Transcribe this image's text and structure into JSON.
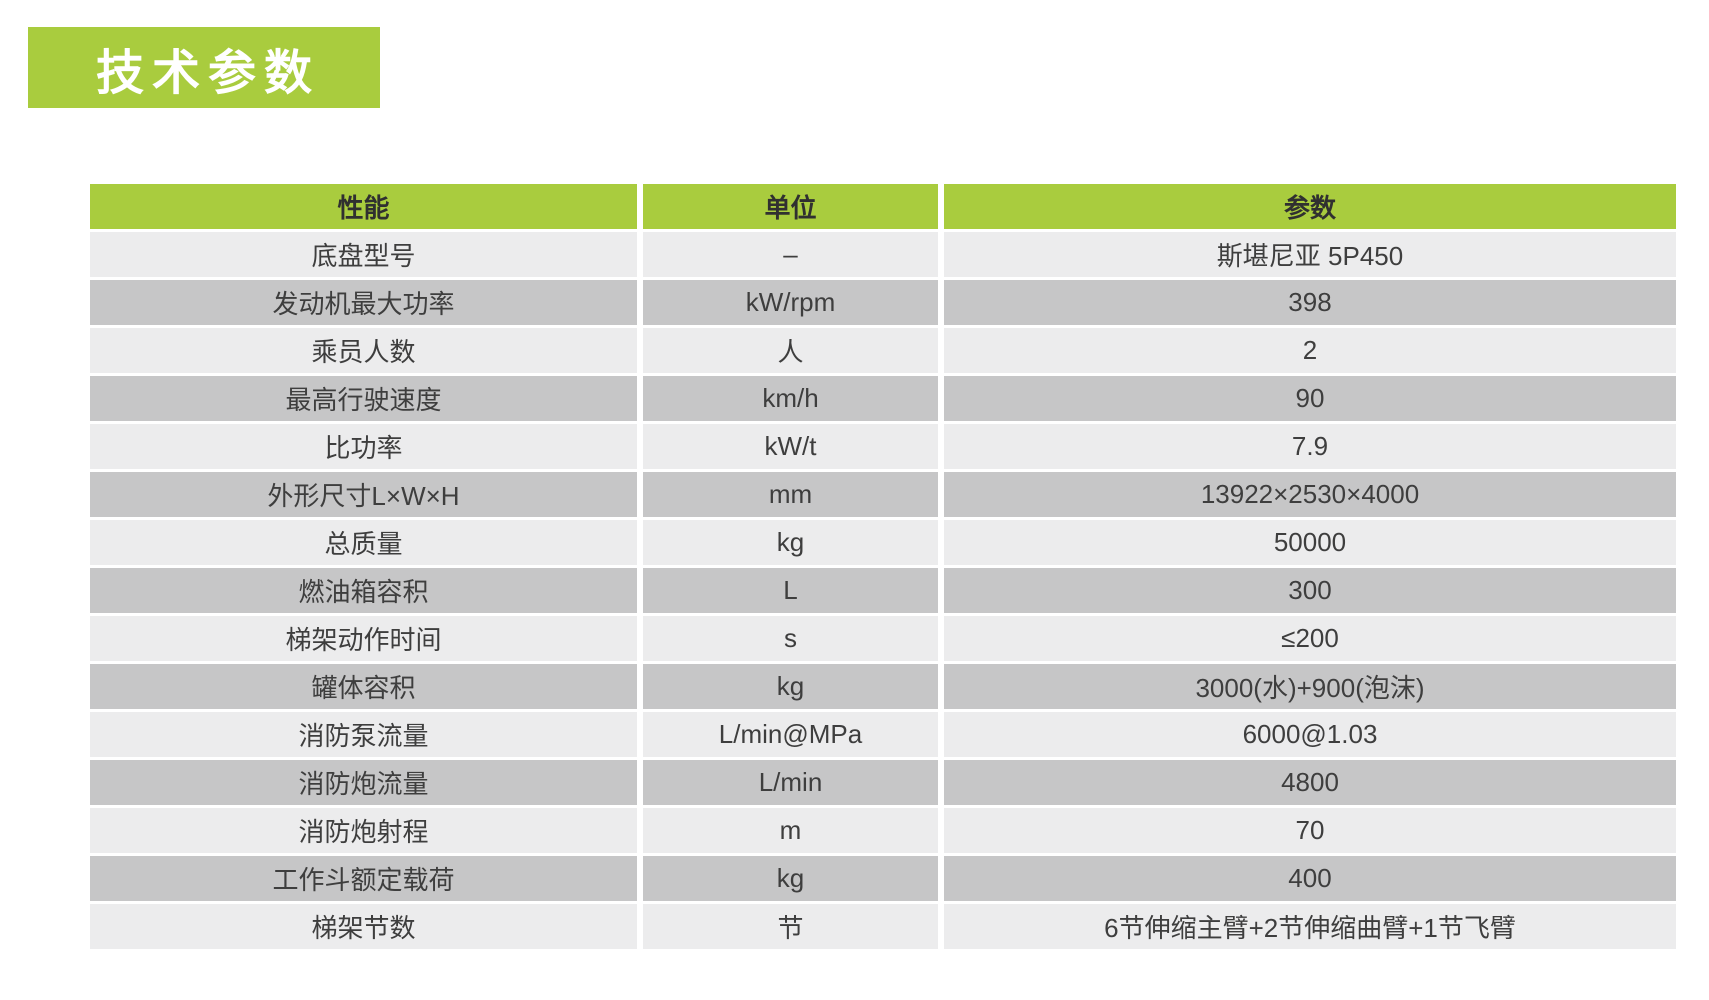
{
  "page": {
    "title": "技术参数"
  },
  "colors": {
    "green": "#A9CC3E",
    "row_light": "#ECECED",
    "row_dark": "#C6C6C7",
    "header_text": "#303030",
    "body_text": "#3E3E3E",
    "title_text": "#FFFFFF"
  },
  "table": {
    "columns": [
      "性能",
      "单位",
      "参数"
    ],
    "rows": [
      {
        "name": "底盘型号",
        "unit": "–",
        "value": "斯堪尼亚 5P450"
      },
      {
        "name": "发动机最大功率",
        "unit": "kW/rpm",
        "value": "398"
      },
      {
        "name": "乘员人数",
        "unit": "人",
        "value": "2"
      },
      {
        "name": "最高行驶速度",
        "unit": "km/h",
        "value": "90"
      },
      {
        "name": "比功率",
        "unit": "kW/t",
        "value": "7.9"
      },
      {
        "name": "外形尺寸L×W×H",
        "unit": "mm",
        "value": "13922×2530×4000"
      },
      {
        "name": "总质量",
        "unit": "kg",
        "value": "50000"
      },
      {
        "name": "燃油箱容积",
        "unit": "L",
        "value": "300"
      },
      {
        "name": "梯架动作时间",
        "unit": "s",
        "value": "≤200"
      },
      {
        "name": "罐体容积",
        "unit": "kg",
        "value": "3000(水)+900(泡沫)"
      },
      {
        "name": "消防泵流量",
        "unit": "L/min@MPa",
        "value": "6000@1.03"
      },
      {
        "name": "消防炮流量",
        "unit": "L/min",
        "value": "4800"
      },
      {
        "name": "消防炮射程",
        "unit": "m",
        "value": "70"
      },
      {
        "name": "工作斗额定载荷",
        "unit": "kg",
        "value": "400"
      },
      {
        "name": "梯架节数",
        "unit": "节",
        "value": "6节伸缩主臂+2节伸缩曲臂+1节飞臂"
      }
    ]
  }
}
